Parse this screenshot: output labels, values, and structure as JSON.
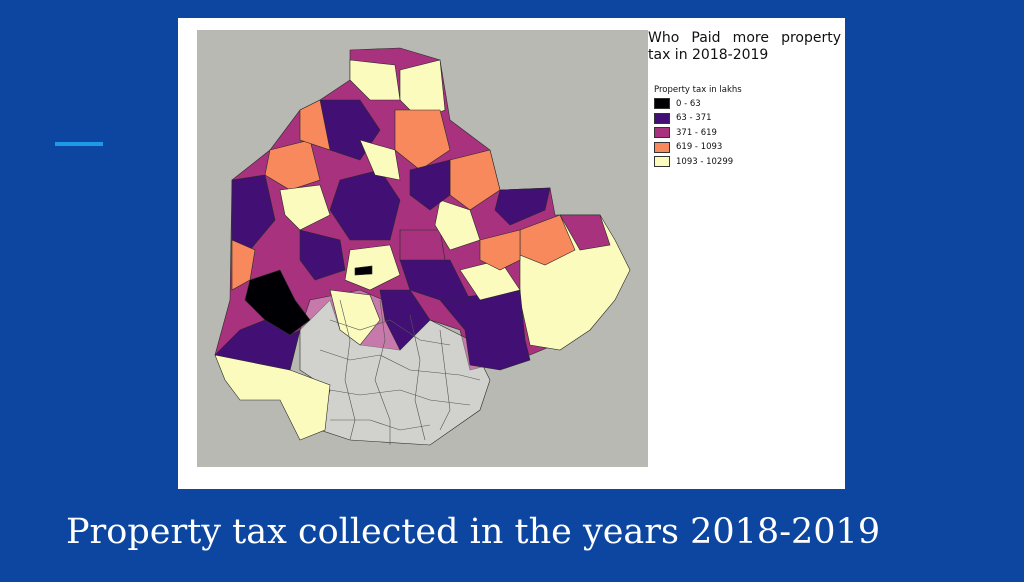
{
  "slide": {
    "title": "Property tax collected in the years 2018-2019"
  },
  "map": {
    "title": "Who Paid more property tax in 2018-2019",
    "legend": {
      "title": "Property tax in lakhs",
      "items": [
        {
          "label": "0 - 63",
          "color": "#000004"
        },
        {
          "label": "63 - 371",
          "color": "#420f75"
        },
        {
          "label": "371 - 619",
          "color": "#a8327d"
        },
        {
          "label": "619 - 1093",
          "color": "#f8895d"
        },
        {
          "label": "1093 - 10299",
          "color": "#fcfbbe"
        }
      ]
    }
  }
}
